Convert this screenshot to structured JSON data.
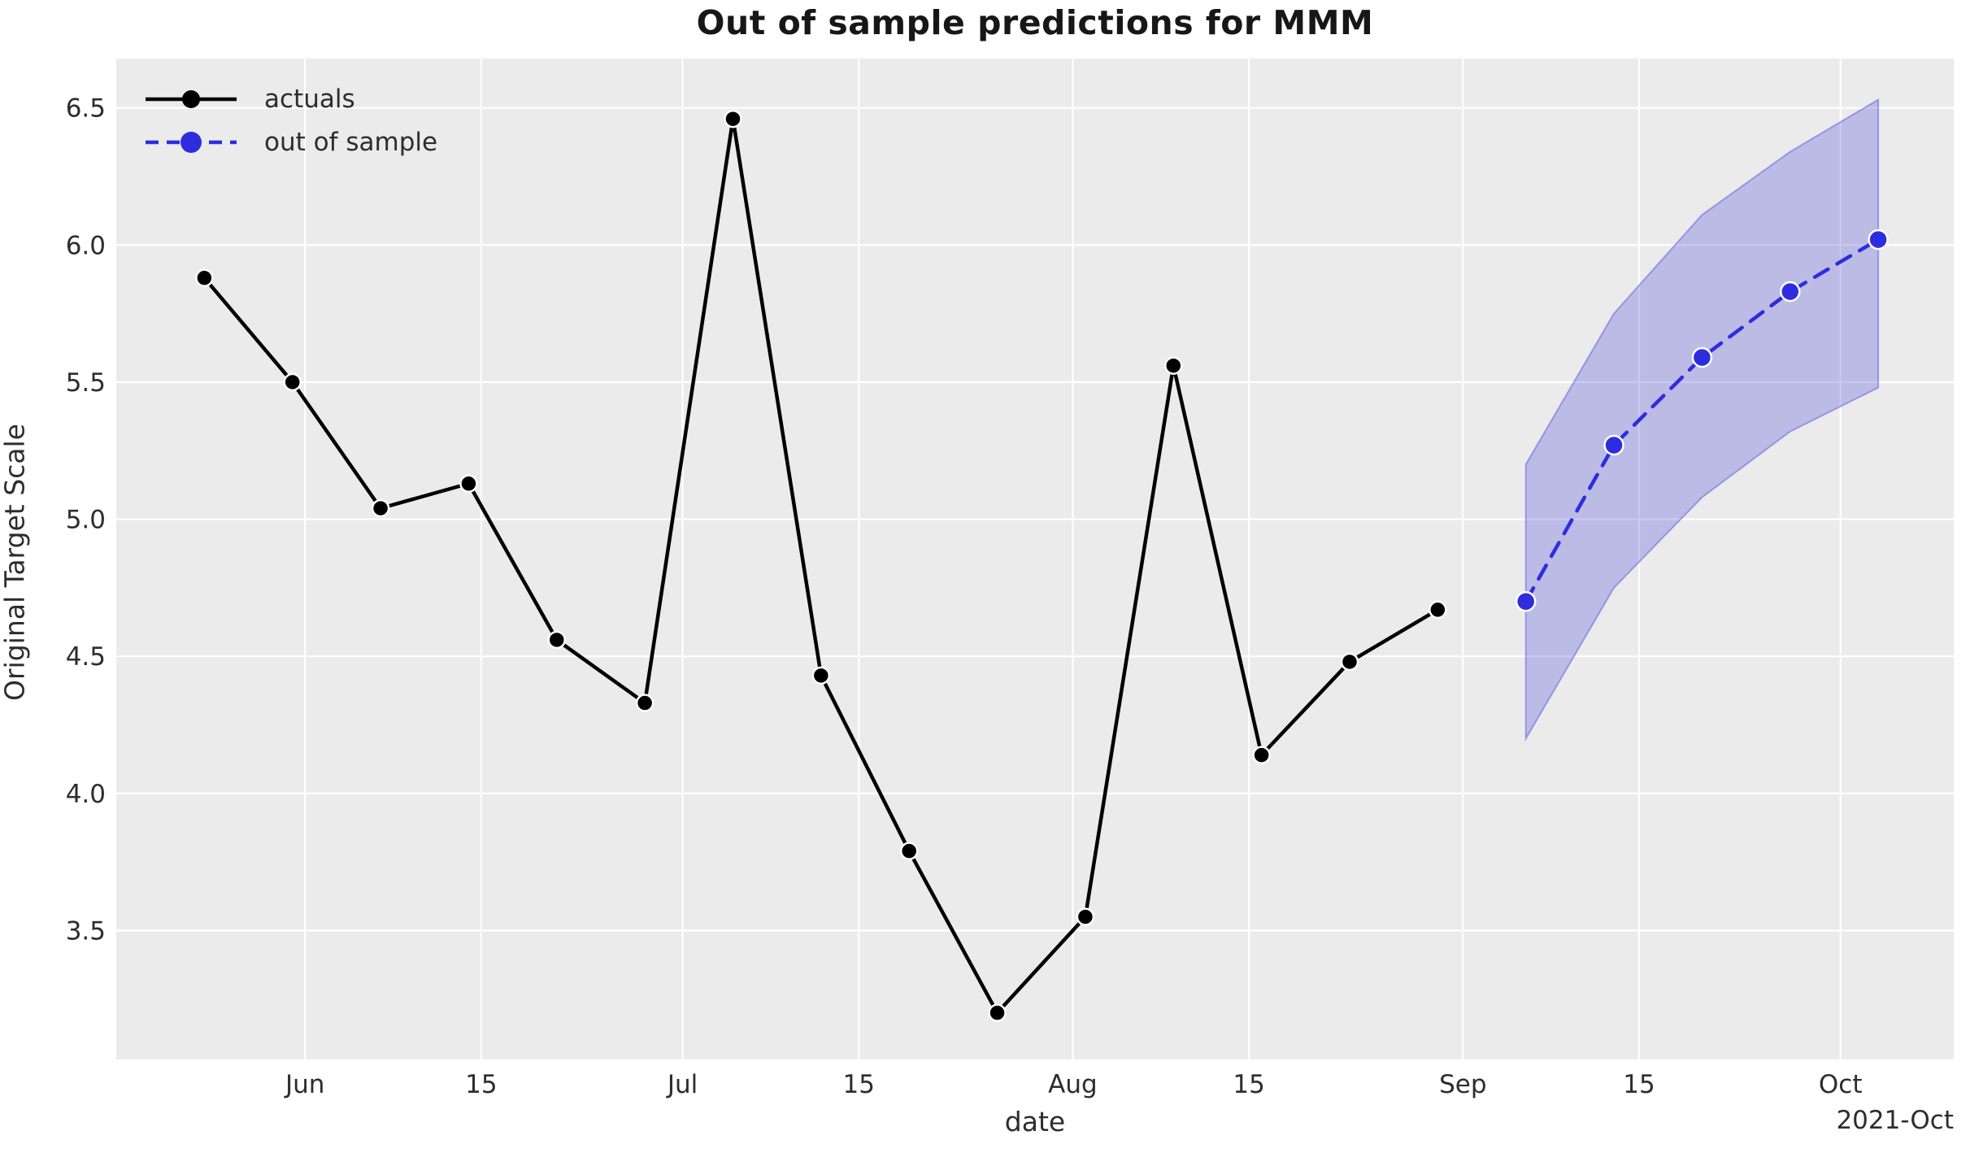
{
  "chart_data": {
    "type": "line",
    "title": "Out of sample predictions for MMM",
    "xlabel": "date",
    "ylabel": "Original Target Scale",
    "x_axis": {
      "unit": "date",
      "offset_label": "2021-Oct",
      "ticks": [
        {
          "label": "Jun",
          "date": "2021-06-01"
        },
        {
          "label": "15",
          "date": "2021-06-15"
        },
        {
          "label": "Jul",
          "date": "2021-07-01"
        },
        {
          "label": "15",
          "date": "2021-07-15"
        },
        {
          "label": "Aug",
          "date": "2021-08-01"
        },
        {
          "label": "15",
          "date": "2021-08-15"
        },
        {
          "label": "Sep",
          "date": "2021-09-01"
        },
        {
          "label": "15",
          "date": "2021-09-15"
        },
        {
          "label": "Oct",
          "date": "2021-10-01"
        }
      ],
      "range": [
        "2021-05-17",
        "2021-10-10"
      ],
      "grid": true
    },
    "y_axis": {
      "ticks": [
        3.5,
        4.0,
        4.5,
        5.0,
        5.5,
        6.0,
        6.5
      ],
      "range": [
        3.03,
        6.68
      ],
      "grid": true
    },
    "legend_position": "upper left",
    "series": [
      {
        "name": "actuals",
        "type": "line",
        "line_style": "solid",
        "marker": "circle",
        "color": "#000000",
        "points": [
          {
            "date": "2021-05-24",
            "value": 5.88
          },
          {
            "date": "2021-05-31",
            "value": 5.5
          },
          {
            "date": "2021-06-07",
            "value": 5.04
          },
          {
            "date": "2021-06-14",
            "value": 5.13
          },
          {
            "date": "2021-06-21",
            "value": 4.56
          },
          {
            "date": "2021-06-28",
            "value": 4.33
          },
          {
            "date": "2021-07-05",
            "value": 6.46
          },
          {
            "date": "2021-07-12",
            "value": 4.43
          },
          {
            "date": "2021-07-19",
            "value": 3.79
          },
          {
            "date": "2021-07-26",
            "value": 3.2
          },
          {
            "date": "2021-08-02",
            "value": 3.55
          },
          {
            "date": "2021-08-09",
            "value": 5.56
          },
          {
            "date": "2021-08-16",
            "value": 4.14
          },
          {
            "date": "2021-08-23",
            "value": 4.48
          },
          {
            "date": "2021-08-30",
            "value": 4.67
          }
        ]
      },
      {
        "name": "out of sample",
        "type": "line",
        "line_style": "dashed",
        "marker": "circle",
        "color": "#2d2ddf",
        "band_fill": "rgba(77,77,220,0.30)",
        "band_edge": "rgba(100,100,225,0.55)",
        "points": [
          {
            "date": "2021-09-06",
            "value": 4.7,
            "lower": 4.2,
            "upper": 5.2
          },
          {
            "date": "2021-09-13",
            "value": 5.27,
            "lower": 4.75,
            "upper": 5.75
          },
          {
            "date": "2021-09-20",
            "value": 5.59,
            "lower": 5.08,
            "upper": 6.11
          },
          {
            "date": "2021-09-27",
            "value": 5.83,
            "lower": 5.32,
            "upper": 6.34
          },
          {
            "date": "2021-10-04",
            "value": 6.02,
            "lower": 5.48,
            "upper": 6.53
          }
        ]
      }
    ],
    "style": {
      "figure_background": "#ffffff",
      "plot_background": "#ebebeb",
      "grid_color": "#ffffff",
      "text_color": "#2d2d2d",
      "title_color": "#171717"
    }
  }
}
